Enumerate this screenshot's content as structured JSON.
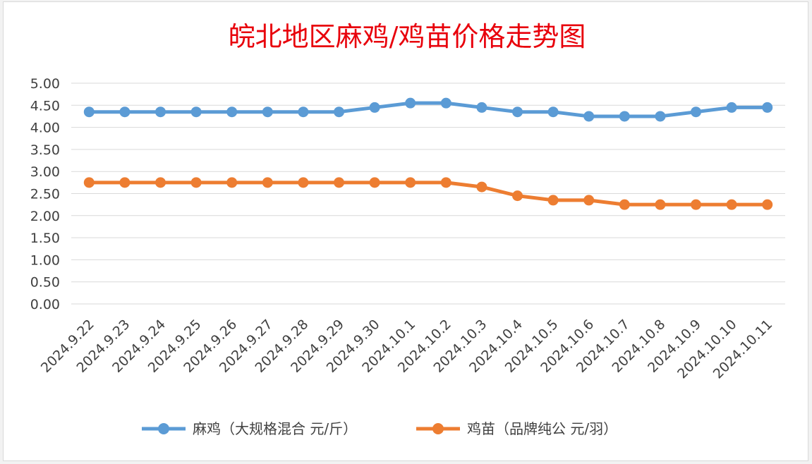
{
  "chart_data": {
    "type": "line",
    "title": "皖北地区麻鸡/鸡苗价格走势图",
    "xlabel": "",
    "ylabel": "",
    "ylim": [
      0,
      5
    ],
    "yticks": [
      "0.00",
      "0.50",
      "1.00",
      "1.50",
      "2.00",
      "2.50",
      "3.00",
      "3.50",
      "4.00",
      "4.50",
      "5.00"
    ],
    "grid": true,
    "legend_position": "bottom",
    "categories": [
      "2024.9.22",
      "2024.9.23",
      "2024.9.24",
      "2024.9.25",
      "2024.9.26",
      "2024.9.27",
      "2024.9.28",
      "2024.9.29",
      "2024.9.30",
      "2024.10.1",
      "2024.10.2",
      "2024.10.3",
      "2024.10.4",
      "2024.10.5",
      "2024.10.6",
      "2024.10.7",
      "2024.10.8",
      "2024.10.9",
      "2024.10.10",
      "2024.10.11"
    ],
    "series": [
      {
        "name": "麻鸡（大规格混合 元/斤）",
        "color": "#5b9bd5",
        "values": [
          4.35,
          4.35,
          4.35,
          4.35,
          4.35,
          4.35,
          4.35,
          4.35,
          4.45,
          4.55,
          4.55,
          4.45,
          4.35,
          4.35,
          4.25,
          4.25,
          4.25,
          4.35,
          4.45,
          4.45
        ]
      },
      {
        "name": "鸡苗（品牌纯公 元/羽）",
        "color": "#ed7d31",
        "values": [
          2.75,
          2.75,
          2.75,
          2.75,
          2.75,
          2.75,
          2.75,
          2.75,
          2.75,
          2.75,
          2.75,
          2.65,
          2.45,
          2.35,
          2.35,
          2.25,
          2.25,
          2.25,
          2.25,
          2.25
        ]
      }
    ]
  }
}
